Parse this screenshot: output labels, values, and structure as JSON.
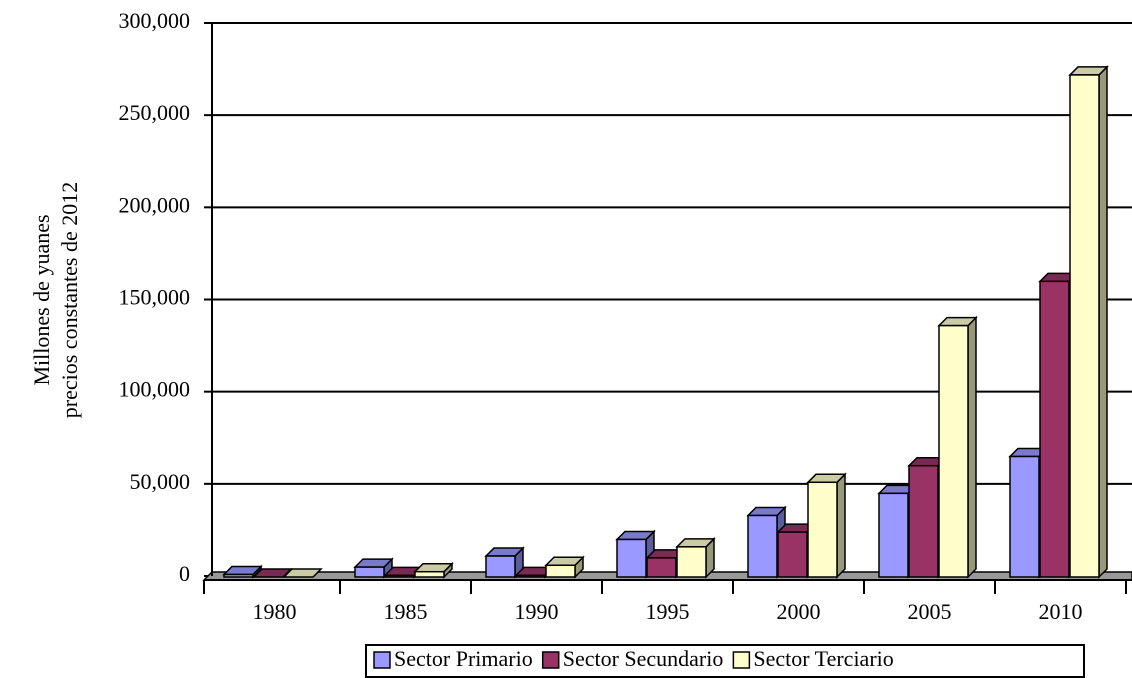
{
  "chart_data": {
    "type": "bar3d",
    "y_label": [
      "Millones de yuanes",
      "precios constantes de 2012"
    ],
    "categories": [
      "1980",
      "1985",
      "1990",
      "1995",
      "2000",
      "2005",
      "2010"
    ],
    "series": [
      {
        "name": "Sector Primario",
        "color": "#9999ff",
        "values": [
          3000,
          7000,
          13000,
          22000,
          35000,
          47000,
          67000
        ]
      },
      {
        "name": "Sector Secundario",
        "color": "#993366",
        "values": [
          1500,
          2500,
          2500,
          12000,
          26000,
          62000,
          162000
        ]
      },
      {
        "name": "Sector Terciario",
        "color": "#ffffcc",
        "values": [
          800,
          4500,
          8000,
          18000,
          53000,
          138000,
          274000
        ]
      }
    ],
    "ylim": [
      0,
      300000
    ],
    "yticks": [
      0,
      {
        "value": 50000,
        "label": "50,000"
      },
      {
        "value": 100000,
        "label": "100,000"
      },
      {
        "value": 150000,
        "label": "150,000"
      },
      {
        "value": 200000,
        "label": "200,000"
      },
      {
        "value": 250000,
        "label": "250,000"
      },
      {
        "value": 300000,
        "label": "300,000"
      }
    ],
    "grid": true,
    "legend": "bottom"
  }
}
